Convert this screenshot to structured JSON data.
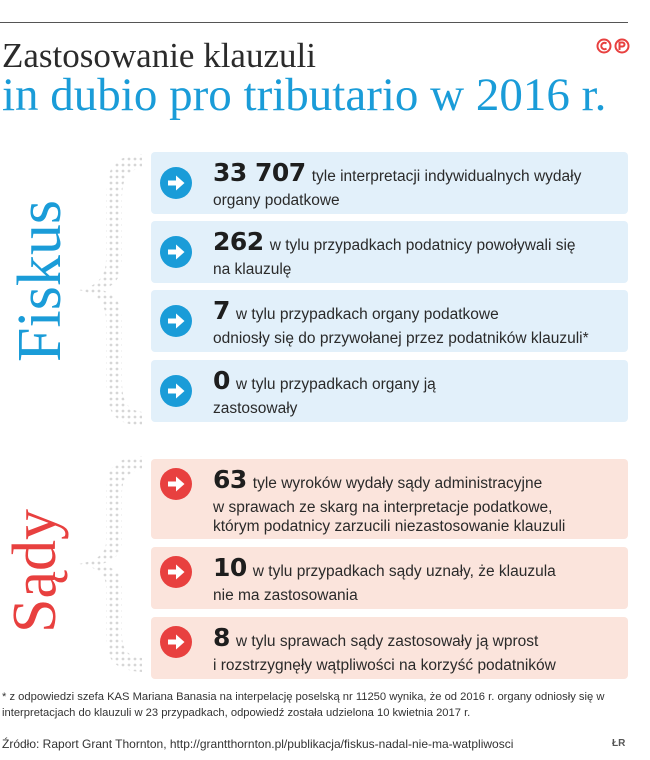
{
  "title": {
    "line1": "Zastosowanie klauzuli",
    "line2": "in dubio pro tributario w 2016 r."
  },
  "logo": "©P",
  "sections": {
    "fiskus": "Fiskus",
    "sady": "Sądy"
  },
  "colors": {
    "blue": "#1a9cd8",
    "red": "#e8403f",
    "blue_card": "#e2f0fa",
    "red_card": "#fbe4dc"
  },
  "fiskus_items": [
    {
      "number": "33 707",
      "text": "tyle interpretacji indywidualnych wydały",
      "lines": [
        "organy podatkowe"
      ]
    },
    {
      "number": "262",
      "text": "w tylu przypadkach podatnicy powoływali się",
      "lines": [
        "na klauzulę"
      ]
    },
    {
      "number": "7",
      "text": "w tylu przypadkach organy podatkowe",
      "lines": [
        "odniosły się do przywołanej przez podatników klauzuli*"
      ]
    },
    {
      "number": "0",
      "text": "w tylu przypadkach organy ją",
      "lines": [
        "zastosowały"
      ]
    }
  ],
  "sady_items": [
    {
      "number": "63",
      "text": "tyle wyroków wydały sądy administracyjne",
      "lines": [
        "w sprawach ze skarg na interpretacje podatkowe,",
        "którym podatnicy zarzucili niezastosowanie klauzuli"
      ]
    },
    {
      "number": "10",
      "text": "w tylu przypadkach sądy uznały, że klauzula",
      "lines": [
        "nie ma zastosowania"
      ]
    },
    {
      "number": "8",
      "text": "w tylu sprawach sądy zastosowały ją wprost",
      "lines": [
        "i rozstrzygnęły wątpliwości na korzyść podatników"
      ]
    }
  ],
  "footnote": "* z odpowiedzi szefa KAS Mariana Banasia na interpelację poselską nr 11250 wynika, że od 2016 r. organy odniosły się w interpretacjach do klauzuli w 23 przypadkach, odpowiedź została udzielona 10 kwietnia 2017 r.",
  "source": "Źródło: Raport Grant Thornton,  http://grantthornton.pl/publikacja/fiskus-nadal-nie-ma-watpliwosci",
  "credit": "ŁR"
}
